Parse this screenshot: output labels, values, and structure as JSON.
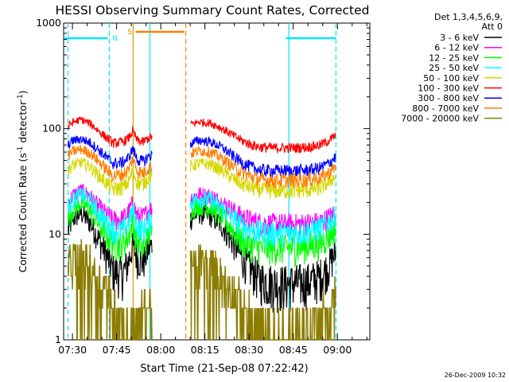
{
  "chart_data": {
    "type": "line",
    "title": "HESSI Observing Summary Count Rates, Corrected",
    "xlabel": "Start Time (21-Sep-08 07:22:42)",
    "ylabel_main": "Corrected Count Rate (s",
    "ylabel_sup1": "-1",
    "ylabel_mid": " detector",
    "ylabel_sup2": "-1",
    "ylabel_end": ")",
    "yscale": "log",
    "ylim": [
      1,
      1000
    ],
    "xlim_minutes": [
      -3,
      101
    ],
    "x_ticks": [
      {
        "label": "07:30",
        "minute": 0
      },
      {
        "label": "07:45",
        "minute": 15
      },
      {
        "label": "08:00",
        "minute": 30
      },
      {
        "label": "08:15",
        "minute": 45
      },
      {
        "label": "08:30",
        "minute": 60
      },
      {
        "label": "08:45",
        "minute": 75
      },
      {
        "label": "09:00",
        "minute": 90
      }
    ],
    "y_ticks": [
      {
        "label": "1",
        "value": 1
      },
      {
        "label": "10",
        "value": 10
      },
      {
        "label": "100",
        "value": 100
      },
      {
        "label": "1000",
        "value": 1000
      }
    ],
    "legend": {
      "header1": "Det 1,3,4,5,6,9,",
      "header2": "Att 0",
      "position": "right"
    },
    "flags": [
      {
        "label": "N",
        "color": "#00e5ff",
        "ranges": [
          [
            -3,
            12
          ],
          [
            72.5,
            89.5
          ]
        ],
        "marker_minute": 14.5
      },
      {
        "label": "S",
        "color": "#ff7f00",
        "ranges": [
          [
            21.5,
            38
          ]
        ],
        "marker_minute": 19.5
      }
    ],
    "event_lines": [
      {
        "minute": -1.5,
        "color": "#00e5ff",
        "style": "dashed"
      },
      {
        "minute": 12.5,
        "color": "#00e5ff",
        "style": "dashed"
      },
      {
        "minute": 20.6,
        "color": "#c8a000",
        "style": "solid"
      },
      {
        "minute": 26.3,
        "color": "#00e5ff",
        "style": "solid"
      },
      {
        "minute": 38.5,
        "color": "#ff7f00",
        "style": "dashed"
      },
      {
        "minute": 73.5,
        "color": "#00e5ff",
        "style": "solid"
      },
      {
        "minute": 89.5,
        "color": "#00e5ff",
        "style": "dashed"
      }
    ],
    "gap_minutes": [
      27,
      40
    ],
    "data_minutes": [
      -1.5,
      89.5
    ],
    "series": [
      {
        "name": "3 - 6 keV",
        "color": "#000000",
        "points": [
          [
            -1.5,
            11
          ],
          [
            0,
            14
          ],
          [
            3,
            16
          ],
          [
            6,
            13
          ],
          [
            9,
            9
          ],
          [
            12,
            6
          ],
          [
            14,
            4.5
          ],
          [
            17,
            4.2
          ],
          [
            19,
            5.5
          ],
          [
            20.5,
            8
          ],
          [
            22,
            6
          ],
          [
            24,
            5.5
          ],
          [
            26,
            7.5
          ],
          [
            40,
            14
          ],
          [
            43,
            16
          ],
          [
            47,
            15
          ],
          [
            51,
            12
          ],
          [
            55,
            8
          ],
          [
            58,
            5.8
          ],
          [
            61,
            4.6
          ],
          [
            64,
            3.8
          ],
          [
            68,
            3.5
          ],
          [
            72,
            3.4
          ],
          [
            76,
            3.5
          ],
          [
            80,
            3.6
          ],
          [
            84,
            4
          ],
          [
            87,
            5
          ],
          [
            89,
            6.5
          ]
        ]
      },
      {
        "name": "6 - 12 keV",
        "color": "#ff00ff",
        "points": [
          [
            -1.5,
            20
          ],
          [
            0,
            23
          ],
          [
            3,
            26
          ],
          [
            6,
            23
          ],
          [
            9,
            18
          ],
          [
            12,
            15
          ],
          [
            14,
            13.5
          ],
          [
            17,
            14
          ],
          [
            19,
            16
          ],
          [
            20.5,
            20
          ],
          [
            22,
            15
          ],
          [
            24,
            14.5
          ],
          [
            26,
            17
          ],
          [
            40,
            22
          ],
          [
            43,
            24
          ],
          [
            47,
            23
          ],
          [
            51,
            20
          ],
          [
            55,
            16.5
          ],
          [
            58,
            14.5
          ],
          [
            61,
            13.5
          ],
          [
            64,
            12.8
          ],
          [
            68,
            12.5
          ],
          [
            72,
            12.5
          ],
          [
            76,
            12.5
          ],
          [
            80,
            12.8
          ],
          [
            84,
            13
          ],
          [
            87,
            14.5
          ],
          [
            89,
            16
          ]
        ]
      },
      {
        "name": "12 - 25 keV",
        "color": "#00ff00",
        "points": [
          [
            -1.5,
            14
          ],
          [
            0,
            17
          ],
          [
            3,
            20
          ],
          [
            6,
            17
          ],
          [
            9,
            12.5
          ],
          [
            12,
            9.5
          ],
          [
            14,
            8.2
          ],
          [
            17,
            8
          ],
          [
            19,
            9.5
          ],
          [
            20.5,
            13
          ],
          [
            22,
            8.5
          ],
          [
            24,
            7.5
          ],
          [
            26,
            10
          ],
          [
            40,
            17
          ],
          [
            43,
            19
          ],
          [
            47,
            18
          ],
          [
            51,
            14.5
          ],
          [
            55,
            10.5
          ],
          [
            58,
            8.5
          ],
          [
            61,
            7.8
          ],
          [
            64,
            7.5
          ],
          [
            68,
            7.5
          ],
          [
            72,
            7.5
          ],
          [
            76,
            7.5
          ],
          [
            80,
            7.8
          ],
          [
            84,
            8.2
          ],
          [
            87,
            9.5
          ],
          [
            89,
            11
          ]
        ]
      },
      {
        "name": "25 - 50 keV",
        "color": "#00ffff",
        "points": [
          [
            -1.5,
            18
          ],
          [
            0,
            21
          ],
          [
            3,
            24
          ],
          [
            6,
            21
          ],
          [
            9,
            16
          ],
          [
            12,
            12.5
          ],
          [
            14,
            11
          ],
          [
            17,
            11
          ],
          [
            19,
            13
          ],
          [
            20.5,
            17
          ],
          [
            22,
            12
          ],
          [
            24,
            11
          ],
          [
            26,
            13.5
          ],
          [
            40,
            20
          ],
          [
            43,
            22
          ],
          [
            47,
            21
          ],
          [
            51,
            17.5
          ],
          [
            55,
            14
          ],
          [
            58,
            12
          ],
          [
            61,
            11
          ],
          [
            64,
            10.5
          ],
          [
            68,
            10.3
          ],
          [
            72,
            10.3
          ],
          [
            76,
            10.5
          ],
          [
            80,
            10.8
          ],
          [
            84,
            11.5
          ],
          [
            87,
            13
          ],
          [
            89,
            15
          ]
        ]
      },
      {
        "name": "50 - 100 keV",
        "color": "#d7d700",
        "points": [
          [
            -1.5,
            40
          ],
          [
            0,
            45
          ],
          [
            3,
            48
          ],
          [
            6,
            44
          ],
          [
            9,
            36
          ],
          [
            12,
            30
          ],
          [
            14,
            27
          ],
          [
            17,
            28
          ],
          [
            19,
            31
          ],
          [
            20.5,
            40
          ],
          [
            22,
            31
          ],
          [
            24,
            30
          ],
          [
            26,
            35
          ],
          [
            40,
            44
          ],
          [
            43,
            47
          ],
          [
            47,
            46
          ],
          [
            51,
            40
          ],
          [
            55,
            33
          ],
          [
            58,
            29.5
          ],
          [
            61,
            27.5
          ],
          [
            64,
            26.5
          ],
          [
            68,
            26
          ],
          [
            72,
            26
          ],
          [
            76,
            26
          ],
          [
            80,
            26.5
          ],
          [
            84,
            27.5
          ],
          [
            87,
            31
          ],
          [
            89,
            35
          ]
        ]
      },
      {
        "name": "100 - 300 keV",
        "color": "#ff0000",
        "points": [
          [
            -1.5,
            105
          ],
          [
            0,
            115
          ],
          [
            3,
            122
          ],
          [
            6,
            112
          ],
          [
            9,
            95
          ],
          [
            12,
            80
          ],
          [
            14,
            73
          ],
          [
            17,
            75
          ],
          [
            19,
            81
          ],
          [
            20.5,
            95
          ],
          [
            22,
            77
          ],
          [
            24,
            75
          ],
          [
            26,
            82
          ],
          [
            40,
            110
          ],
          [
            43,
            116
          ],
          [
            47,
            113
          ],
          [
            51,
            100
          ],
          [
            55,
            85
          ],
          [
            58,
            76
          ],
          [
            61,
            70
          ],
          [
            64,
            67
          ],
          [
            68,
            66
          ],
          [
            72,
            66
          ],
          [
            76,
            66
          ],
          [
            80,
            67
          ],
          [
            84,
            70
          ],
          [
            87,
            77
          ],
          [
            89,
            85
          ]
        ]
      },
      {
        "name": "300 - 800 keV",
        "color": "#0000ff",
        "points": [
          [
            -1.5,
            70
          ],
          [
            0,
            77
          ],
          [
            3,
            80
          ],
          [
            6,
            74
          ],
          [
            9,
            63
          ],
          [
            12,
            52
          ],
          [
            14,
            47
          ],
          [
            17,
            48
          ],
          [
            19,
            53
          ],
          [
            20.5,
            65
          ],
          [
            22,
            51
          ],
          [
            24,
            49
          ],
          [
            26,
            55
          ],
          [
            40,
            72
          ],
          [
            43,
            78
          ],
          [
            47,
            75
          ],
          [
            51,
            66
          ],
          [
            55,
            54
          ],
          [
            58,
            47
          ],
          [
            61,
            43
          ],
          [
            64,
            40.5
          ],
          [
            68,
            40
          ],
          [
            72,
            40
          ],
          [
            76,
            40
          ],
          [
            80,
            40.5
          ],
          [
            84,
            42.5
          ],
          [
            87,
            47
          ],
          [
            89,
            53
          ]
        ]
      },
      {
        "name": "800 - 7000 keV",
        "color": "#ff7f00",
        "points": [
          [
            -1.5,
            55
          ],
          [
            0,
            61
          ],
          [
            3,
            64
          ],
          [
            6,
            59
          ],
          [
            9,
            49
          ],
          [
            12,
            40
          ],
          [
            14,
            36
          ],
          [
            17,
            37
          ],
          [
            19,
            41
          ],
          [
            20.5,
            52
          ],
          [
            22,
            40
          ],
          [
            24,
            38
          ],
          [
            26,
            43
          ],
          [
            40,
            58
          ],
          [
            43,
            62
          ],
          [
            47,
            60
          ],
          [
            51,
            52
          ],
          [
            55,
            43
          ],
          [
            58,
            38
          ],
          [
            61,
            35
          ],
          [
            64,
            33
          ],
          [
            68,
            32.5
          ],
          [
            72,
            32.5
          ],
          [
            76,
            32.5
          ],
          [
            80,
            33
          ],
          [
            84,
            34.5
          ],
          [
            87,
            38
          ],
          [
            89,
            43
          ]
        ]
      },
      {
        "name": "7000 - 20000 keV",
        "color": "#8b7d00",
        "points": [
          [
            -1.5,
            5
          ],
          [
            0,
            5.8
          ],
          [
            3,
            6
          ],
          [
            6,
            5.2
          ],
          [
            9,
            4
          ],
          [
            12,
            3
          ],
          [
            14,
            2.2
          ],
          [
            16,
            1.6
          ],
          [
            18,
            1.3
          ],
          [
            40,
            5
          ],
          [
            43,
            5.5
          ],
          [
            47,
            5.2
          ],
          [
            51,
            4
          ],
          [
            55,
            3
          ],
          [
            58,
            2.2
          ],
          [
            61,
            1.6
          ],
          [
            64,
            1.3
          ],
          [
            68,
            1.2
          ],
          [
            72,
            1.2
          ],
          [
            76,
            1.3
          ],
          [
            80,
            1.4
          ],
          [
            84,
            1.6
          ],
          [
            87,
            2.2
          ],
          [
            89,
            3
          ]
        ]
      }
    ]
  },
  "footer": {
    "timestamp": "26-Dec-2009 10:32"
  }
}
